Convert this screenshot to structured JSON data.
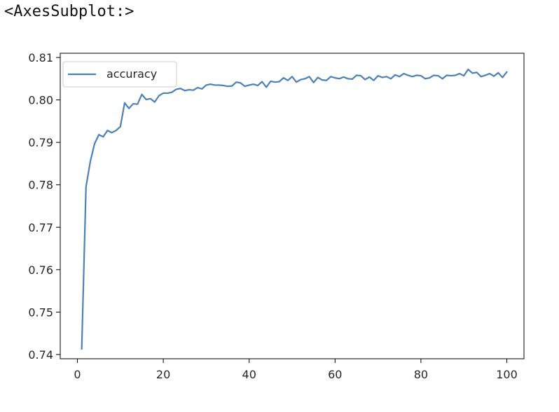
{
  "output": {
    "repr_text": "<AxesSubplot:>"
  },
  "chart_data": {
    "type": "line",
    "title": "",
    "xlabel": "",
    "ylabel": "",
    "xlim": [
      -4,
      104
    ],
    "ylim": [
      0.739,
      0.811
    ],
    "xticks": [
      0,
      20,
      40,
      60,
      80,
      100
    ],
    "xtick_labels": [
      "0",
      "20",
      "40",
      "60",
      "80",
      "100"
    ],
    "yticks": [
      0.74,
      0.75,
      0.76,
      0.77,
      0.78,
      0.79,
      0.8,
      0.81
    ],
    "ytick_labels": [
      "0.74",
      "0.75",
      "0.76",
      "0.77",
      "0.78",
      "0.79",
      "0.80",
      "0.81"
    ],
    "grid": false,
    "legend_position": "upper-left",
    "series": [
      {
        "name": "accuracy",
        "color": "#4c81b8",
        "x": [
          1,
          2,
          3,
          4,
          5,
          6,
          7,
          8,
          9,
          10,
          11,
          12,
          13,
          14,
          15,
          16,
          17,
          18,
          19,
          20,
          21,
          22,
          23,
          24,
          25,
          26,
          27,
          28,
          29,
          30,
          31,
          32,
          33,
          34,
          35,
          36,
          37,
          38,
          39,
          40,
          41,
          42,
          43,
          44,
          45,
          46,
          47,
          48,
          49,
          50,
          51,
          52,
          53,
          54,
          55,
          56,
          57,
          58,
          59,
          60,
          61,
          62,
          63,
          64,
          65,
          66,
          67,
          68,
          69,
          70,
          71,
          72,
          73,
          74,
          75,
          76,
          77,
          78,
          79,
          80,
          81,
          82,
          83,
          84,
          85,
          86,
          87,
          88,
          89,
          90,
          91,
          92,
          93,
          94,
          95,
          96,
          97,
          98,
          99,
          100
        ],
        "y": [
          0.7413,
          0.7795,
          0.7855,
          0.7897,
          0.7918,
          0.7913,
          0.7928,
          0.7923,
          0.7928,
          0.7937,
          0.7993,
          0.798,
          0.7991,
          0.799,
          0.8013,
          0.8001,
          0.8003,
          0.7995,
          0.801,
          0.8016,
          0.8016,
          0.8018,
          0.8025,
          0.8027,
          0.8022,
          0.8024,
          0.8023,
          0.8029,
          0.8026,
          0.8035,
          0.8037,
          0.8035,
          0.8035,
          0.8034,
          0.8032,
          0.8033,
          0.8042,
          0.804,
          0.8032,
          0.8035,
          0.8037,
          0.8034,
          0.8043,
          0.803,
          0.8044,
          0.8042,
          0.8043,
          0.8052,
          0.8046,
          0.8055,
          0.8042,
          0.8048,
          0.805,
          0.8055,
          0.8041,
          0.8053,
          0.8047,
          0.8046,
          0.8055,
          0.8052,
          0.805,
          0.8054,
          0.805,
          0.8049,
          0.8058,
          0.8057,
          0.8048,
          0.8054,
          0.8046,
          0.8057,
          0.8053,
          0.8055,
          0.805,
          0.8059,
          0.8055,
          0.8062,
          0.8058,
          0.8055,
          0.8058,
          0.8057,
          0.805,
          0.8052,
          0.8058,
          0.8057,
          0.805,
          0.8058,
          0.8057,
          0.8058,
          0.8062,
          0.8057,
          0.8072,
          0.8063,
          0.8065,
          0.8055,
          0.8058,
          0.8062,
          0.8056,
          0.8064,
          0.8053,
          0.8066
        ]
      }
    ]
  }
}
